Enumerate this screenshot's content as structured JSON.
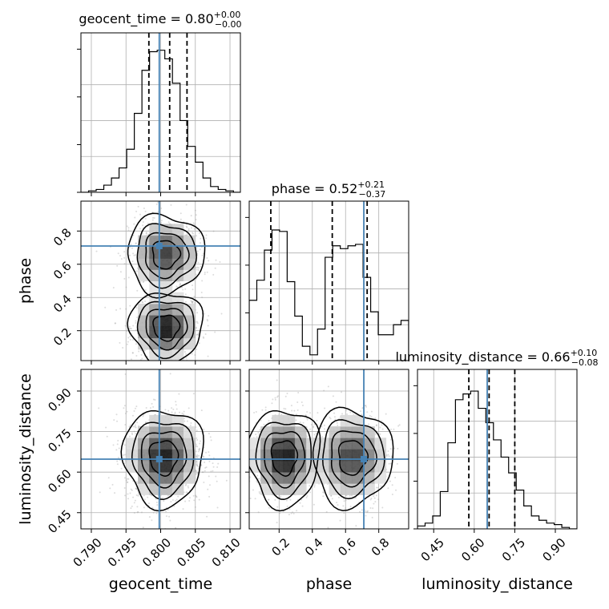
{
  "chart_data": {
    "type": "corner",
    "variables": [
      "geocent_time",
      "phase",
      "luminosity_distance"
    ],
    "ranges": [
      [
        0.7885,
        0.8115
      ],
      [
        0.02,
        0.98
      ],
      [
        0.39,
        0.98
      ]
    ],
    "ticks": [
      {
        "values": [
          0.79,
          0.795,
          0.8,
          0.805,
          0.81
        ],
        "labels": [
          "0.790",
          "0.795",
          "0.800",
          "0.805",
          "0.810"
        ]
      },
      {
        "values": [
          0.2,
          0.4,
          0.6,
          0.8
        ],
        "labels": [
          "0.2",
          "0.4",
          "0.6",
          "0.8"
        ]
      },
      {
        "values": [
          0.45,
          0.6,
          0.75,
          0.9
        ],
        "labels": [
          "0.45",
          "0.60",
          "0.75",
          "0.90"
        ]
      }
    ],
    "truth": [
      0.7998,
      0.71,
      0.648
    ],
    "truth_color": "#4682b4",
    "grid": true,
    "titles": [
      {
        "label": "geocent_time = 0.80",
        "sup": "+0.00",
        "sub": "−0.00"
      },
      {
        "label": "phase = 0.52",
        "sup": "+0.21",
        "sub": "−0.37"
      },
      {
        "label": "luminosity_distance = 0.66",
        "sup": "+0.10",
        "sub": "−0.08"
      }
    ],
    "quantiles": [
      [
        0.7983,
        0.8013,
        0.8038
      ],
      [
        0.15,
        0.52,
        0.73
      ],
      [
        0.58,
        0.655,
        0.75
      ]
    ],
    "histograms": [
      {
        "edges_start": 0.7885,
        "bin_width": 0.0011,
        "counts": [
          0.0,
          0.01,
          0.02,
          0.05,
          0.1,
          0.17,
          0.3,
          0.55,
          0.85,
          0.98,
          0.99,
          0.93,
          0.76,
          0.5,
          0.32,
          0.21,
          0.1,
          0.04,
          0.02,
          0.01,
          0.0
        ]
      },
      {
        "edges_start": 0.02,
        "bin_width": 0.0457,
        "counts": [
          0.42,
          0.56,
          0.77,
          0.91,
          0.9,
          0.55,
          0.31,
          0.1,
          0.04,
          0.22,
          0.72,
          0.8,
          0.78,
          0.8,
          0.81,
          0.58,
          0.34,
          0.18,
          0.18,
          0.25,
          0.28
        ]
      },
      {
        "edges_start": 0.39,
        "bin_width": 0.0281,
        "counts": [
          0.02,
          0.04,
          0.09,
          0.26,
          0.6,
          0.9,
          0.94,
          0.96,
          0.84,
          0.74,
          0.62,
          0.5,
          0.39,
          0.27,
          0.16,
          0.09,
          0.06,
          0.04,
          0.03,
          0.01,
          0.0
        ]
      }
    ],
    "modes_2d": {
      "1_0": [
        {
          "cx": 0.8008,
          "cy": 0.22,
          "sx": 0.0022,
          "sy": 0.09,
          "w": 0.55
        },
        {
          "cx": 0.8007,
          "cy": 0.66,
          "sx": 0.0023,
          "sy": 0.1,
          "w": 0.45
        }
      ],
      "2_0": [
        {
          "cx": 0.8004,
          "cy": 0.655,
          "sx": 0.0024,
          "sy": 0.075,
          "w": 1.0
        }
      ],
      "2_1": [
        {
          "cx": 0.23,
          "cy": 0.655,
          "sx": 0.09,
          "sy": 0.075,
          "w": 0.55
        },
        {
          "cx": 0.64,
          "cy": 0.655,
          "sx": 0.1,
          "sy": 0.075,
          "w": 0.45
        }
      ]
    }
  }
}
